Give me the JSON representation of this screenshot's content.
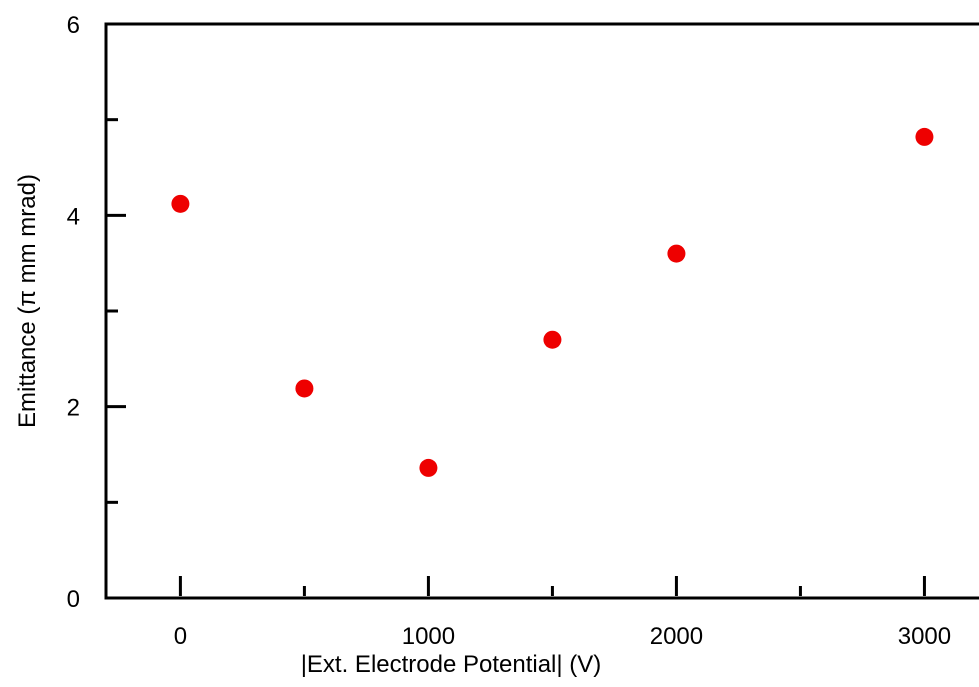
{
  "chart_data": {
    "type": "scatter",
    "title": "",
    "xlabel": "|Ext. Electrode Potential| (V)",
    "ylabel": "Emittance (π mm mrad)",
    "xlim": [
      -300,
      3220
    ],
    "ylim": [
      0,
      6
    ],
    "x_ticks": [
      0,
      1000,
      2000,
      3000
    ],
    "x_minor_ticks": [
      500,
      1500,
      2500
    ],
    "y_ticks": [
      0,
      2,
      4,
      6
    ],
    "y_minor_ticks": [
      1,
      3,
      5
    ],
    "grid": false,
    "legend": "none",
    "marker_color": "#ee0000",
    "series": [
      {
        "x": [
          0,
          500,
          1000,
          1500,
          2000,
          3000
        ],
        "y": [
          4.12,
          2.19,
          1.36,
          2.7,
          3.6,
          4.82
        ]
      }
    ]
  }
}
